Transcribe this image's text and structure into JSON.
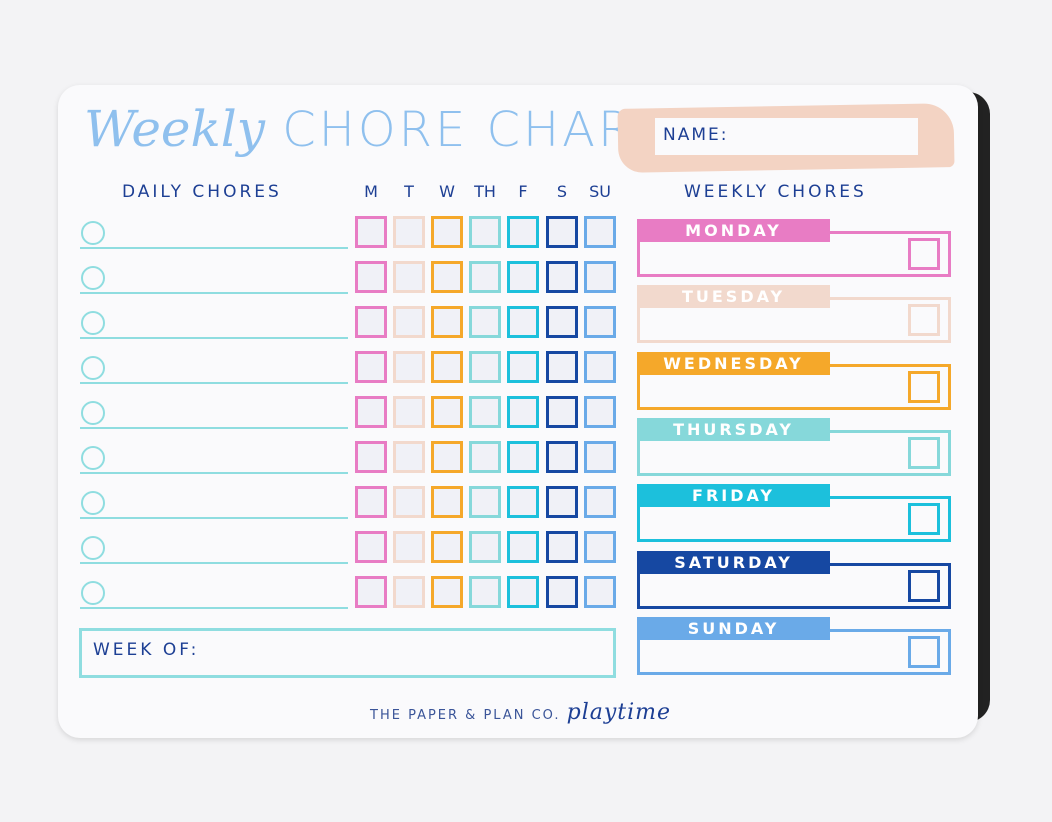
{
  "title": {
    "script": "Weekly",
    "caps": "CHORE CHART"
  },
  "name_label": "NAME:",
  "daily": {
    "header": "DAILY CHORES",
    "days": [
      {
        "label": "M",
        "color": "#e87cc4"
      },
      {
        "label": "T",
        "color": "#f2d9cd"
      },
      {
        "label": "W",
        "color": "#f5a82a"
      },
      {
        "label": "TH",
        "color": "#86d8da"
      },
      {
        "label": "F",
        "color": "#1cc0dc"
      },
      {
        "label": "S",
        "color": "#1648a2"
      },
      {
        "label": "SU",
        "color": "#6aaae8"
      }
    ],
    "row_count": 9,
    "week_of_label": "WEEK OF:"
  },
  "weekly": {
    "header": "WEEKLY CHORES",
    "days": [
      {
        "label": "MONDAY",
        "color": "#e87cc4"
      },
      {
        "label": "TUESDAY",
        "color": "#f2d9cd"
      },
      {
        "label": "WEDNESDAY",
        "color": "#f5a82a"
      },
      {
        "label": "THURSDAY",
        "color": "#86d8da"
      },
      {
        "label": "FRIDAY",
        "color": "#1cc0dc"
      },
      {
        "label": "SATURDAY",
        "color": "#1648a2"
      },
      {
        "label": "SUNDAY",
        "color": "#6aaae8"
      }
    ]
  },
  "footer": {
    "brand": "THE PAPER & PLAN CO.",
    "line": "playtime"
  }
}
